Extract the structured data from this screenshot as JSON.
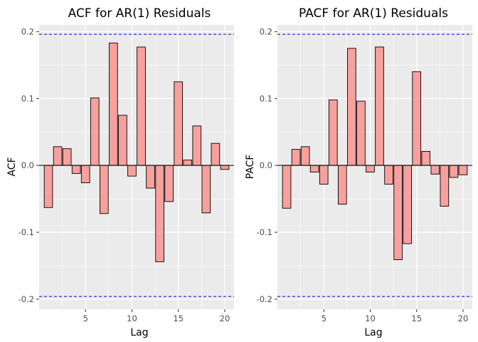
{
  "chart_data": [
    {
      "type": "bar",
      "title": "ACF for AR(1) Residuals",
      "xlabel": "Lag",
      "ylabel": "ACF",
      "x": [
        1,
        2,
        3,
        4,
        5,
        6,
        7,
        8,
        9,
        10,
        11,
        12,
        13,
        14,
        15,
        16,
        17,
        18,
        19,
        20
      ],
      "values": [
        -0.063,
        0.028,
        0.025,
        -0.012,
        -0.026,
        0.101,
        -0.072,
        0.183,
        0.075,
        -0.016,
        0.177,
        -0.034,
        -0.144,
        -0.054,
        0.125,
        0.008,
        0.059,
        -0.071,
        0.033,
        -0.006
      ],
      "xlim": [
        0,
        21
      ],
      "ylim": [
        -0.215,
        0.21
      ],
      "xticks": [
        5,
        10,
        15,
        20
      ],
      "yticks": [
        -0.2,
        -0.1,
        0.0,
        0.1,
        0.2
      ],
      "ytick_labels": [
        "-0.2",
        "-0.1",
        "0.0",
        "0.1",
        "0.2"
      ],
      "confidence_bounds": [
        0.196,
        -0.196
      ],
      "grid": true,
      "colors": {
        "bar_fill": "#F8A09E",
        "bar_stroke": "#000000",
        "ci_line": "#0000CC",
        "panel_bg": "#EBEBEB",
        "grid": "#FFFFFF"
      }
    },
    {
      "type": "bar",
      "title": "PACF for AR(1) Residuals",
      "xlabel": "Lag",
      "ylabel": "PACF",
      "x": [
        1,
        2,
        3,
        4,
        5,
        6,
        7,
        8,
        9,
        10,
        11,
        12,
        13,
        14,
        15,
        16,
        17,
        18,
        19,
        20
      ],
      "values": [
        -0.064,
        0.024,
        0.028,
        -0.01,
        -0.028,
        0.098,
        -0.058,
        0.175,
        0.096,
        -0.01,
        0.177,
        -0.028,
        -0.141,
        -0.117,
        0.14,
        0.021,
        -0.013,
        -0.061,
        -0.018,
        -0.014
      ],
      "xlim": [
        0,
        21
      ],
      "ylim": [
        -0.215,
        0.21
      ],
      "xticks": [
        5,
        10,
        15,
        20
      ],
      "yticks": [
        -0.2,
        -0.1,
        0.0,
        0.1,
        0.2
      ],
      "ytick_labels": [
        "-0.2",
        "-0.1",
        "0.0",
        "0.1",
        "0.2"
      ],
      "confidence_bounds": [
        0.196,
        -0.196
      ],
      "grid": true,
      "colors": {
        "bar_fill": "#F8A09E",
        "bar_stroke": "#000000",
        "ci_line": "#0000CC",
        "panel_bg": "#EBEBEB",
        "grid": "#FFFFFF"
      }
    }
  ]
}
